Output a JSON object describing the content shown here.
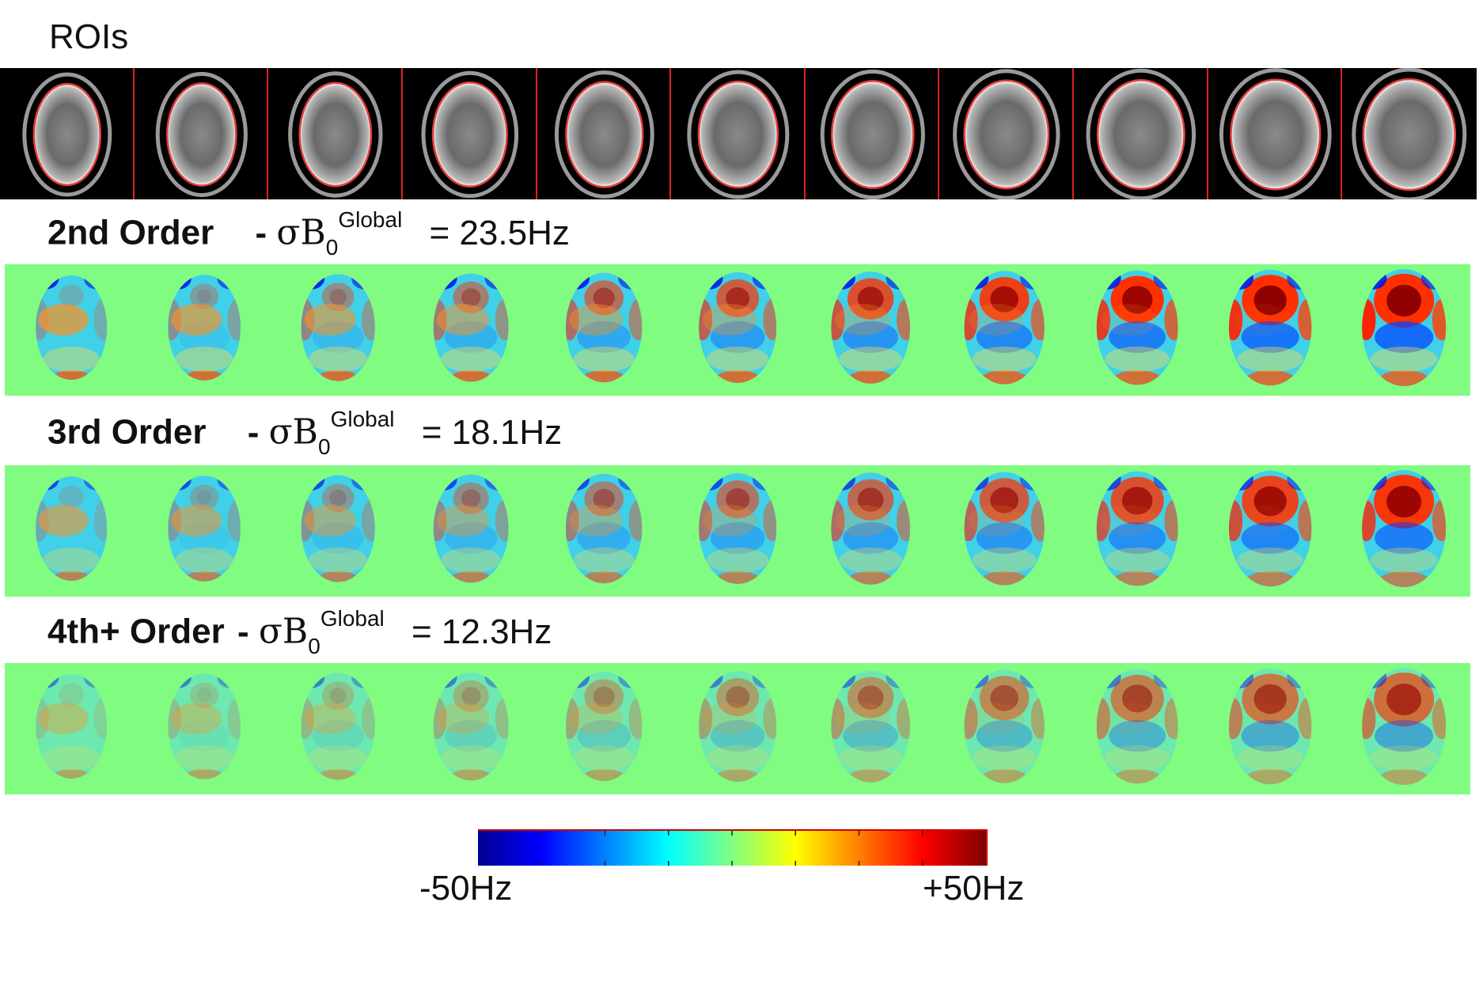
{
  "roi_title": "ROIs",
  "rows": [
    {
      "order": "2nd Order",
      "dash": "-",
      "sym": "σB",
      "sub": "0",
      "sup": "Global",
      "eq": "= 23.5Hz",
      "amp": 1.0
    },
    {
      "order": "3rd Order",
      "dash": "-",
      "sym": "σB",
      "sub": "0",
      "sup": "Global",
      "eq": "= 18.1Hz",
      "amp": 0.8
    },
    {
      "order": "4th+ Order",
      "dash": "-",
      "sym": "σB",
      "sub": "0",
      "sup": "Global",
      "eq": "= 12.3Hz",
      "amp": 0.55
    }
  ],
  "colorbar": {
    "min_label": "-50Hz",
    "max_label": "+50Hz"
  },
  "slice_count": 11,
  "colors": {
    "background_map": "#80fc80",
    "roi_contour": "#e23b3b"
  }
}
